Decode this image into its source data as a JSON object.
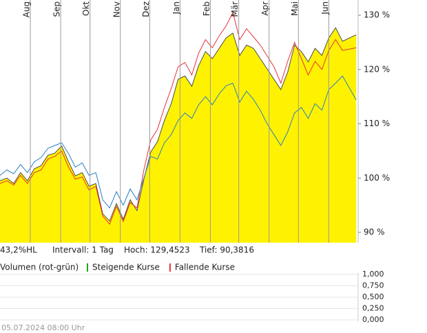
{
  "chart_data": [
    {
      "type": "line",
      "x": [
        0,
        7,
        14,
        21,
        28,
        35,
        42,
        49,
        56,
        63,
        70,
        77,
        84,
        91,
        98,
        105,
        112,
        119,
        126,
        133,
        140,
        147,
        154,
        161,
        168,
        175,
        182,
        189,
        196,
        203,
        210,
        217,
        224,
        231,
        238,
        245,
        252,
        259,
        266,
        273,
        280,
        287,
        294,
        301,
        308,
        315,
        322,
        329,
        336,
        343,
        350,
        364
      ],
      "xlim": [
        0,
        366
      ],
      "xticks": [
        {
          "value": 31,
          "label": "Aug"
        },
        {
          "value": 62,
          "label": "Sep"
        },
        {
          "value": 92,
          "label": "Okt"
        },
        {
          "value": 123,
          "label": "Nov"
        },
        {
          "value": 153,
          "label": "Dez"
        },
        {
          "value": 184,
          "label": "Jan"
        },
        {
          "value": 215,
          "label": "Feb"
        },
        {
          "value": 244,
          "label": "Mär"
        },
        {
          "value": 275,
          "label": "Apr"
        },
        {
          "value": 305,
          "label": "Mai"
        },
        {
          "value": 336,
          "label": "Jun"
        }
      ],
      "ylim": [
        88.1,
        132.8
      ],
      "yticks": [
        {
          "value": 90,
          "label": "90 %"
        },
        {
          "value": 100,
          "label": "100 %"
        },
        {
          "value": 110,
          "label": "110 %"
        },
        {
          "value": 120,
          "label": "120 %"
        },
        {
          "value": 130,
          "label": "130 %"
        }
      ],
      "grid": "x",
      "series": [
        {
          "color": "#4a4a4a",
          "fill": "#fff200",
          "values": [
            99.5,
            100,
            99,
            101,
            99.5,
            101.7,
            102.3,
            104.2,
            104.6,
            105.9,
            103,
            100.4,
            101,
            98.5,
            99,
            93.4,
            92.1,
            95.3,
            92.4,
            96,
            94,
            99.8,
            104.8,
            106.7,
            110.6,
            113.7,
            118.2,
            118.8,
            116.9,
            120.7,
            123.3,
            122,
            123.9,
            125.8,
            126.7,
            122.6,
            124.5,
            123.9,
            122,
            120.1,
            118.2,
            116.3,
            119.5,
            124.5,
            123.3,
            121.4,
            123.9,
            122.6,
            125.8,
            127.7,
            125.2,
            126.4
          ]
        },
        {
          "color": "#e8303a",
          "values": [
            99,
            99.5,
            98.7,
            100.5,
            99,
            101,
            101.5,
            103.5,
            104,
            105,
            102,
            99.8,
            100.2,
            97.8,
            98.5,
            93,
            91.5,
            94.8,
            92,
            95.5,
            94.5,
            101.5,
            107,
            109,
            113,
            116.5,
            120.5,
            121.3,
            119,
            123,
            125.5,
            124,
            126.2,
            128,
            130.5,
            125.5,
            127.5,
            126,
            124.5,
            122.5,
            120.5,
            117.5,
            121.5,
            125,
            122,
            119,
            121.5,
            120,
            123.5,
            125.5,
            123.5,
            124
          ]
        },
        {
          "color": "#2a7fc0",
          "values": [
            100.5,
            101.5,
            100.8,
            102.5,
            101,
            103,
            103.8,
            105.5,
            106,
            106.5,
            104.5,
            102,
            102.8,
            100.5,
            101,
            96,
            94.5,
            97.5,
            95,
            98,
            96,
            100,
            104,
            103.5,
            106.5,
            108,
            110.6,
            112,
            111,
            113.5,
            115,
            113.5,
            115.5,
            117,
            117.5,
            114,
            116,
            114.5,
            112.5,
            110,
            108,
            106,
            108.5,
            112,
            113,
            111,
            113.7,
            112.5,
            116.3,
            117.5,
            118.8,
            114.4
          ]
        }
      ],
      "stats": [
        "43,2%HL",
        "Intervall: 1 Tag",
        "Hoch: 129,4523",
        "Tief: 90,3816"
      ]
    },
    {
      "type": "bar",
      "title": "Volumen (rot-grün)",
      "ylim": [
        0,
        1
      ],
      "yticks": [
        {
          "value": 1,
          "label": "1,000"
        },
        {
          "value": 0.75,
          "label": "0,750"
        },
        {
          "value": 0.5,
          "label": "0,500"
        },
        {
          "value": 0.25,
          "label": "0,250"
        },
        {
          "value": 0,
          "label": "0,000"
        }
      ],
      "grid": "y",
      "series": [
        {
          "name": "Steigende Kurse",
          "color": "#1aa31a",
          "values": []
        },
        {
          "name": "Fallende Kurse",
          "color": "#e8303a",
          "values": []
        }
      ]
    }
  ],
  "footer": "05.07.2024 08:00 Uhr"
}
